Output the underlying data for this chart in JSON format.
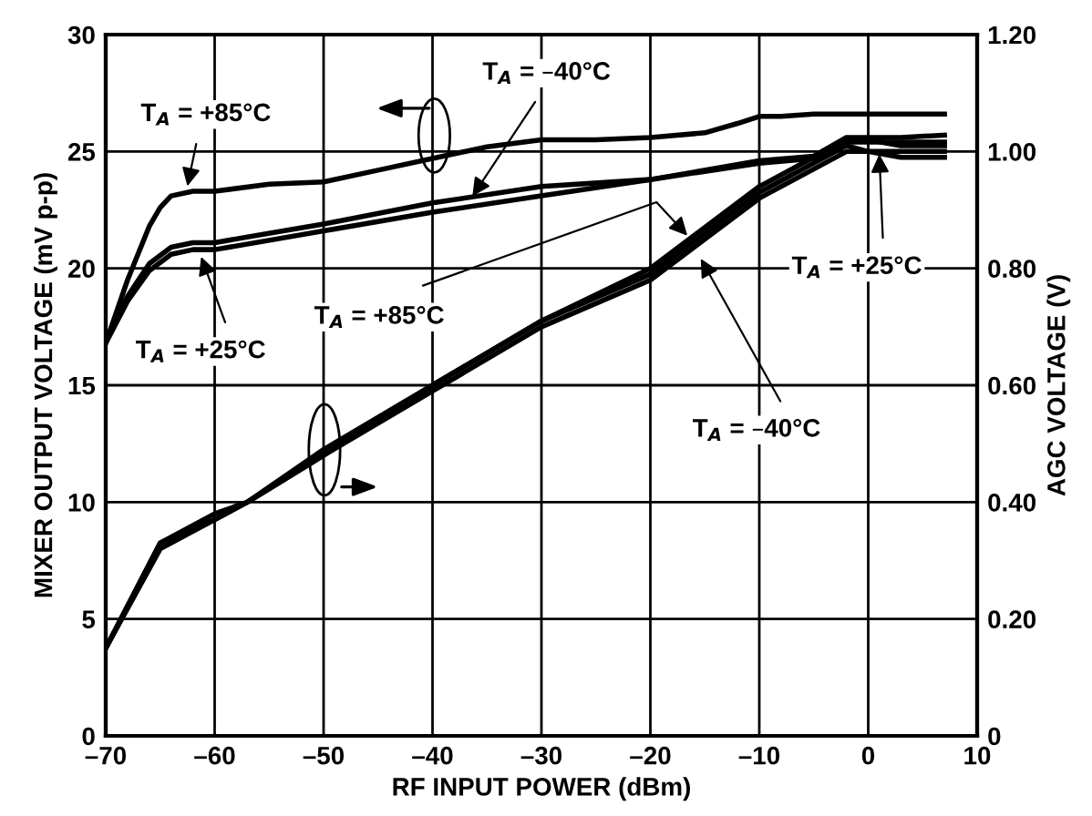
{
  "chart_data": {
    "type": "line",
    "xlabel": "RF INPUT POWER (dBm)",
    "ylabel": "MIXER OUTPUT VOLTAGE (mV p-p)",
    "y2label": "AGC VOLTAGE (V)",
    "xlim": [
      -70,
      10
    ],
    "ylim": [
      0,
      30
    ],
    "y2lim": [
      0,
      1.2
    ],
    "xticks": [
      {
        "value": -70,
        "label": "–70"
      },
      {
        "value": -60,
        "label": "–60"
      },
      {
        "value": -50,
        "label": "–50"
      },
      {
        "value": -40,
        "label": "–40"
      },
      {
        "value": -30,
        "label": "–30"
      },
      {
        "value": -20,
        "label": "–20"
      },
      {
        "value": -10,
        "label": "–10"
      },
      0,
      10
    ],
    "yticks": [
      0,
      5,
      10,
      15,
      20,
      25,
      30
    ],
    "y2ticks": [
      0,
      {
        "value": 0.2,
        "label": "0.20"
      },
      {
        "value": 0.4,
        "label": "0.40"
      },
      {
        "value": 0.6,
        "label": "0.60"
      },
      {
        "value": 0.8,
        "label": "0.80"
      },
      {
        "value": 1.0,
        "label": "1.00"
      },
      {
        "value": 1.2,
        "label": "1.20"
      }
    ],
    "grid": true,
    "series": [
      {
        "color": "#000000",
        "x": [
          -70,
          -68,
          -66,
          -65,
          -64,
          -62,
          -60,
          -55,
          -50,
          -45,
          -40,
          -35,
          -30,
          -25,
          -20,
          -15,
          -12,
          -10,
          -8,
          -5,
          -2,
          0,
          3,
          7
        ],
        "values": [
          16.8,
          19.5,
          21.8,
          22.6,
          23.1,
          23.3,
          23.3,
          23.6,
          23.7,
          24.2,
          24.7,
          25.2,
          25.5,
          25.5,
          25.6,
          25.8,
          26.2,
          26.5,
          26.5,
          26.6,
          26.6,
          26.6,
          26.6,
          26.6
        ]
      },
      {
        "color": "#000000",
        "x": [
          -70,
          -68,
          -66,
          -64,
          -62,
          -60,
          -50,
          -40,
          -30,
          -20,
          -10,
          -5,
          -2,
          0,
          3,
          7
        ],
        "values": [
          16.9,
          18.8,
          20.2,
          20.9,
          21.1,
          21.1,
          21.9,
          22.8,
          23.5,
          23.8,
          24.6,
          24.8,
          25.6,
          25.6,
          25.6,
          25.7
        ]
      },
      {
        "color": "#000000",
        "x": [
          -70,
          -68,
          -66,
          -64,
          -62,
          -60,
          -50,
          -40,
          -30,
          -20,
          -10,
          -5,
          -2,
          0,
          3,
          7
        ],
        "values": [
          16.8,
          18.6,
          19.9,
          20.6,
          20.8,
          20.8,
          21.6,
          22.4,
          23.1,
          23.8,
          24.5,
          24.7,
          25.4,
          25.4,
          25.4,
          25.4
        ]
      },
      {
        "color": "#000000",
        "axis": "y2",
        "x": [
          -70,
          -65,
          -60,
          -57,
          -50,
          -40,
          -30,
          -20,
          -10,
          -5,
          -2,
          0,
          3,
          7
        ],
        "values": [
          0.15,
          0.32,
          0.37,
          0.4,
          0.48,
          0.6,
          0.71,
          0.79,
          0.93,
          0.98,
          1.01,
          1.0,
          1.0,
          1.0
        ]
      },
      {
        "color": "#000000",
        "axis": "y2",
        "x": [
          -70,
          -65,
          -60,
          -57,
          -50,
          -40,
          -30,
          -20,
          -10,
          -5,
          -2,
          0,
          3,
          7
        ],
        "values": [
          0.15,
          0.33,
          0.37,
          0.4,
          0.48,
          0.59,
          0.7,
          0.78,
          0.92,
          0.97,
          1.0,
          1.0,
          0.99,
          0.99
        ]
      },
      {
        "color": "#000000",
        "axis": "y2",
        "x": [
          -70,
          -65,
          -60,
          -57,
          -50,
          -40,
          -30,
          -20,
          -10,
          -5,
          -2,
          0,
          3,
          7
        ],
        "values": [
          0.15,
          0.33,
          0.38,
          0.4,
          0.49,
          0.6,
          0.71,
          0.8,
          0.94,
          0.99,
          1.02,
          1.02,
          1.01,
          1.01
        ]
      }
    ],
    "annotations": [
      {
        "text": "T$_{A}$ = +85°C",
        "x": -62.6,
        "y": 23.3
      },
      {
        "text": "T$_{A}$ = –40°C",
        "x": -36.6,
        "y": 22.9
      },
      {
        "text": "T$_{A}$ = +25°C",
        "x": -61.4,
        "y": 20.7
      },
      {
        "text": "T$_{A}$ = +85°C",
        "x": -16.6,
        "y": 21.4
      },
      {
        "text": "T$_{A}$ = +25°C",
        "x": 1.0,
        "y": 25.1
      },
      {
        "text": "T$_{A}$ = –40°C",
        "x": -15.6,
        "y": 20.6
      }
    ]
  }
}
